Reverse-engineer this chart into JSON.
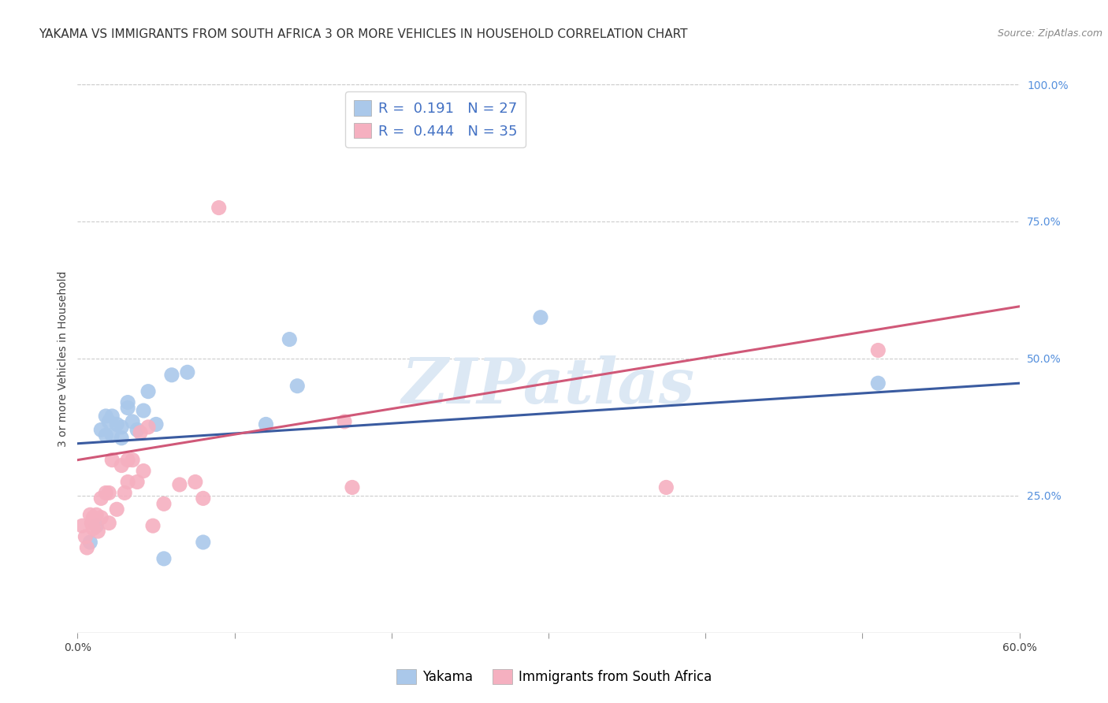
{
  "title": "YAKAMA VS IMMIGRANTS FROM SOUTH AFRICA 3 OR MORE VEHICLES IN HOUSEHOLD CORRELATION CHART",
  "source": "Source: ZipAtlas.com",
  "ylabel": "3 or more Vehicles in Household",
  "x_min": 0.0,
  "x_max": 0.6,
  "y_min": 0.0,
  "y_max": 1.0,
  "x_ticks": [
    0.0,
    0.1,
    0.2,
    0.3,
    0.4,
    0.5,
    0.6
  ],
  "x_tick_labels": [
    "0.0%",
    "",
    "",
    "",
    "",
    "",
    "60.0%"
  ],
  "y_ticks_right": [
    0.25,
    0.5,
    0.75,
    1.0
  ],
  "y_tick_labels_right": [
    "25.0%",
    "50.0%",
    "75.0%",
    "100.0%"
  ],
  "series1_name": "Yakama",
  "series1_color": "#aac8ea",
  "series1_line_color": "#3a5ba0",
  "series1_R": 0.191,
  "series1_N": 27,
  "series2_name": "Immigrants from South Africa",
  "series2_color": "#f5b0c0",
  "series2_line_color": "#d05878",
  "series2_R": 0.444,
  "series2_N": 35,
  "watermark": "ZIPatlas",
  "blue_line_x0": 0.0,
  "blue_line_y0": 0.345,
  "blue_line_x1": 0.6,
  "blue_line_y1": 0.455,
  "pink_line_x0": 0.0,
  "pink_line_y0": 0.315,
  "pink_line_x1": 0.6,
  "pink_line_y1": 0.595,
  "blue_scatter_x": [
    0.008,
    0.012,
    0.015,
    0.018,
    0.018,
    0.02,
    0.022,
    0.022,
    0.025,
    0.028,
    0.028,
    0.032,
    0.032,
    0.035,
    0.038,
    0.042,
    0.045,
    0.05,
    0.055,
    0.06,
    0.07,
    0.08,
    0.12,
    0.135,
    0.14,
    0.295,
    0.51
  ],
  "blue_scatter_y": [
    0.165,
    0.195,
    0.37,
    0.395,
    0.36,
    0.385,
    0.36,
    0.395,
    0.38,
    0.375,
    0.355,
    0.42,
    0.41,
    0.385,
    0.37,
    0.405,
    0.44,
    0.38,
    0.135,
    0.47,
    0.475,
    0.165,
    0.38,
    0.535,
    0.45,
    0.575,
    0.455
  ],
  "pink_scatter_x": [
    0.003,
    0.005,
    0.006,
    0.008,
    0.009,
    0.01,
    0.01,
    0.012,
    0.013,
    0.015,
    0.015,
    0.018,
    0.02,
    0.02,
    0.022,
    0.025,
    0.028,
    0.03,
    0.032,
    0.032,
    0.035,
    0.038,
    0.04,
    0.042,
    0.045,
    0.048,
    0.055,
    0.065,
    0.075,
    0.08,
    0.09,
    0.17,
    0.175,
    0.375,
    0.51
  ],
  "pink_scatter_y": [
    0.195,
    0.175,
    0.155,
    0.215,
    0.2,
    0.21,
    0.19,
    0.215,
    0.185,
    0.245,
    0.21,
    0.255,
    0.255,
    0.2,
    0.315,
    0.225,
    0.305,
    0.255,
    0.315,
    0.275,
    0.315,
    0.275,
    0.365,
    0.295,
    0.375,
    0.195,
    0.235,
    0.27,
    0.275,
    0.245,
    0.775,
    0.385,
    0.265,
    0.265,
    0.515
  ],
  "background_color": "#ffffff",
  "grid_color": "#cccccc",
  "title_fontsize": 11,
  "axis_label_fontsize": 10,
  "tick_fontsize": 10,
  "legend_fontsize": 13
}
